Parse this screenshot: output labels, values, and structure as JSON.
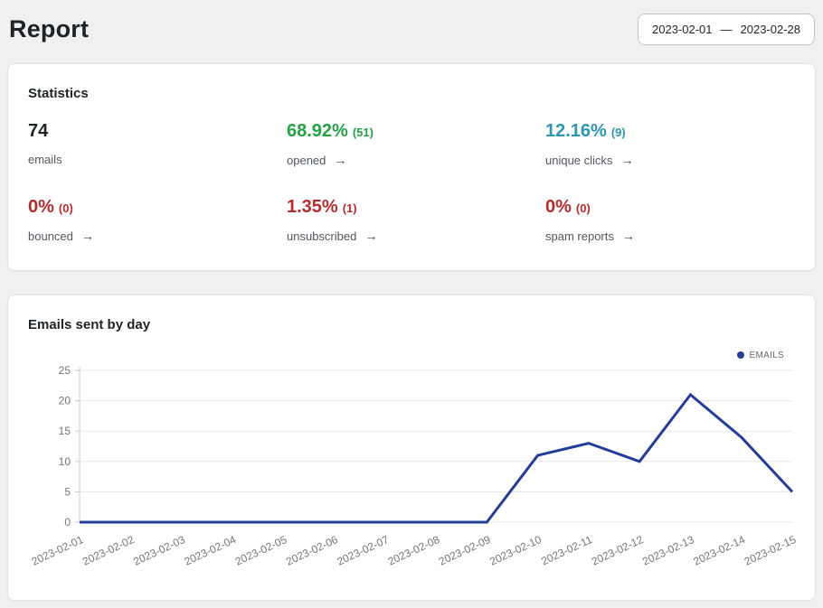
{
  "page": {
    "title": "Report"
  },
  "date_range": {
    "from": "2023-02-01",
    "separator": "—",
    "to": "2023-02-28"
  },
  "stats": {
    "heading": "Statistics",
    "arrow_glyph": "→",
    "metrics": [
      {
        "value": "74",
        "count": "",
        "label": "emails",
        "color": "#1d2327",
        "arrow": false
      },
      {
        "value": "68.92%",
        "count": "(51)",
        "label": "opened",
        "color": "#28a047",
        "arrow": true
      },
      {
        "value": "12.16%",
        "count": "(9)",
        "label": "unique clicks",
        "color": "#2e97ac",
        "arrow": true
      },
      {
        "value": "0%",
        "count": "(0)",
        "label": "bounced",
        "color": "#b32d2e",
        "arrow": true
      },
      {
        "value": "1.35%",
        "count": "(1)",
        "label": "unsubscribed",
        "color": "#b32d2e",
        "arrow": true
      },
      {
        "value": "0%",
        "count": "(0)",
        "label": "spam reports",
        "color": "#b32d2e",
        "arrow": true
      }
    ]
  },
  "chart": {
    "heading": "Emails sent by day",
    "legend": "EMAILS"
  },
  "chart_data": {
    "type": "line",
    "title": "Emails sent by day",
    "categories": [
      "2023-02-01",
      "2023-02-02",
      "2023-02-03",
      "2023-02-04",
      "2023-02-05",
      "2023-02-06",
      "2023-02-07",
      "2023-02-08",
      "2023-02-09",
      "2023-02-10",
      "2023-02-11",
      "2023-02-12",
      "2023-02-13",
      "2023-02-14",
      "2023-02-15"
    ],
    "series": [
      {
        "name": "EMAILS",
        "values": [
          0,
          0,
          0,
          0,
          0,
          0,
          0,
          0,
          0,
          11,
          13,
          10,
          21,
          14,
          5
        ],
        "color": "#233c96"
      }
    ],
    "xlabel": "",
    "ylabel": "",
    "ylim": [
      0,
      25
    ],
    "yticks": [
      0,
      5,
      10,
      15,
      20,
      25
    ],
    "grid": true,
    "legend_position": "top-right",
    "axis_color": "#c9c9c9",
    "grid_color": "#e7e7e7",
    "tick_label_color": "#757575"
  }
}
